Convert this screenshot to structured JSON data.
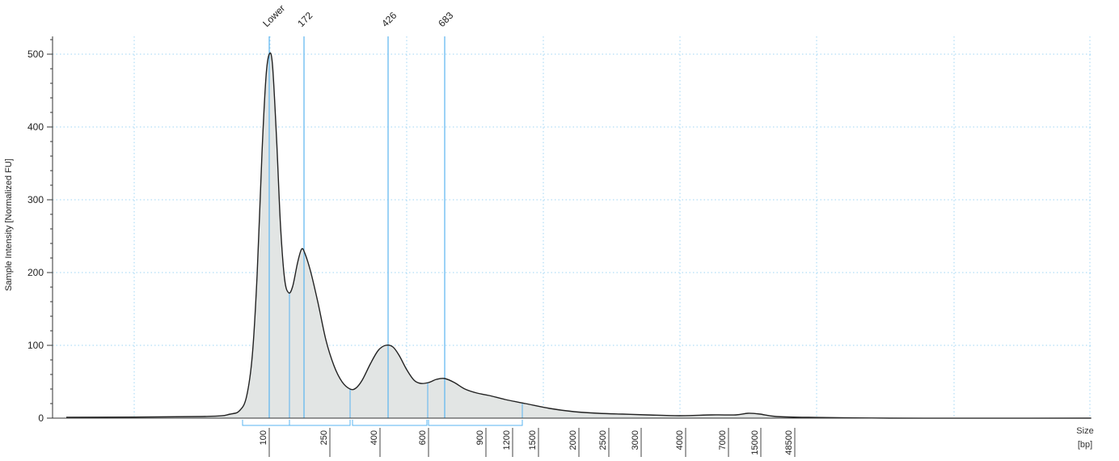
{
  "chart_data": {
    "type": "area",
    "ylabel": "Sample Intensity [Normalized FU]",
    "xlabel": "Size",
    "xunit": "[bp]",
    "ylim": [
      0,
      530
    ],
    "yticks": [
      0,
      100,
      200,
      300,
      400,
      500
    ],
    "x_ticks": [
      "100",
      "250",
      "400",
      "600",
      "900",
      "1200",
      "1500",
      "2000",
      "2500",
      "3000",
      "4000",
      "7000",
      "15000",
      "48500"
    ],
    "peaks": [
      {
        "label": "Lower",
        "intensity": 500
      },
      {
        "label": "172",
        "intensity": 225
      },
      {
        "label": "426",
        "intensity": 100
      },
      {
        "label": "683",
        "intensity": 53
      }
    ],
    "grid": true,
    "colors": {
      "fill": "#e2e5e4",
      "line": "#222222",
      "marker": "#5ab4f0",
      "grid": "#9fd6f5"
    },
    "series": [
      {
        "values": [
          {
            "x": "<100",
            "y": 1
          },
          {
            "x": "100",
            "y": 500
          },
          {
            "x": "~135",
            "y": 172
          },
          {
            "x": "172",
            "y": 225
          },
          {
            "x": "~300",
            "y": 40
          },
          {
            "x": "426",
            "y": 100
          },
          {
            "x": "~600",
            "y": 47
          },
          {
            "x": "683",
            "y": 53
          },
          {
            "x": "900",
            "y": 35
          },
          {
            "x": "1200",
            "y": 26
          },
          {
            "x": "1500",
            "y": 18
          },
          {
            "x": "2000",
            "y": 10
          },
          {
            "x": "3000",
            "y": 6
          },
          {
            "x": "4000",
            "y": 5
          },
          {
            "x": "7000",
            "y": 4
          },
          {
            "x": "15000",
            "y": 3
          },
          {
            "x": "48500",
            "y": 1
          }
        ]
      }
    ]
  }
}
